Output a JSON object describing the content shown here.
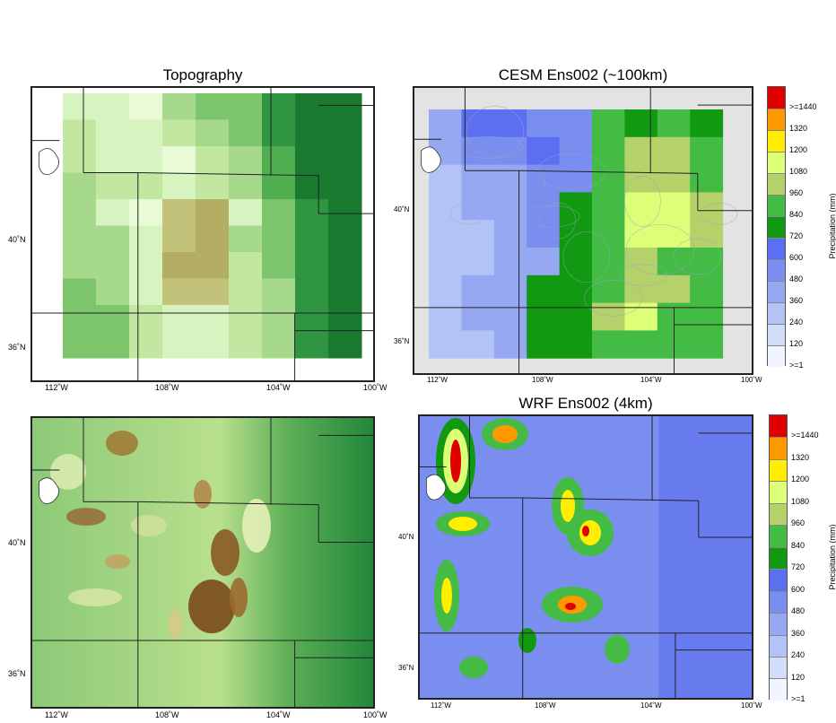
{
  "panels": {
    "topography": {
      "title": "Topography"
    },
    "cesm": {
      "title": "CESM Ens002 (~100km)"
    },
    "topo_hires": {
      "title": ""
    },
    "wrf": {
      "title": "WRF Ens002 (4km)"
    }
  },
  "axes": {
    "lon_ticks": [
      "112˚W",
      "108˚W",
      "104˚W",
      "100˚W"
    ],
    "lat_ticks": [
      "40˚N",
      "36˚N"
    ]
  },
  "colorbar": {
    "label": "Precipitation (mm)",
    "levels": [
      ">=1440",
      "1320",
      "1200",
      "1080",
      "960",
      "840",
      "720",
      "600",
      "480",
      "360",
      "240",
      "120",
      ">=1"
    ],
    "colors": [
      "#e00000",
      "#ff9900",
      "#ffee00",
      "#ddff77",
      "#b5d26a",
      "#44bb44",
      "#119911",
      "#5c6ff0",
      "#7a8ef0",
      "#96a8f2",
      "#b3c3f6",
      "#d2ddfa",
      "#f1f5ff"
    ]
  },
  "palettes": {
    "topo": [
      "#e9fbd6",
      "#d7f3bf",
      "#c2e7a0",
      "#a7d98c",
      "#7dc56b",
      "#4fae50",
      "#2f9540",
      "#1a7a30",
      "#c3c27a",
      "#b3ae64"
    ]
  }
}
